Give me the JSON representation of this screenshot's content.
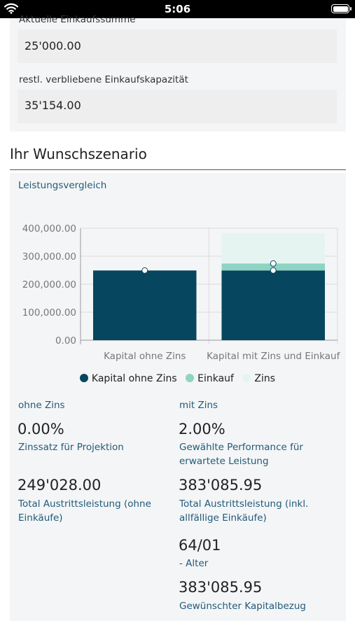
{
  "status": {
    "time": "5:06"
  },
  "fields": {
    "purchase_sum_label": "Aktuelle Einkaufssumme",
    "purchase_sum_value": "25'000.00",
    "remaining_label": "restl. verbliebene Einkaufskapazität",
    "remaining_value": "35'154.00"
  },
  "section": {
    "title": "Ihr Wunschszenario",
    "subtitle": "Leistungsvergleich"
  },
  "colors": {
    "kapital": "#07465f",
    "einkauf": "#8fd4c3",
    "zins": "#e6f4f1",
    "link": "#1f5a7a"
  },
  "chart_data": {
    "type": "bar",
    "categories": [
      "Kapital ohne Zins",
      "Kapital mit Zins und Einkauf"
    ],
    "y_ticks": [
      "400,000.00",
      "300,000.00",
      "200,000.00",
      "100,000.00",
      "0.00"
    ],
    "ylim": [
      0,
      400000
    ],
    "series": [
      {
        "name": "Kapital ohne Zins",
        "values": [
          249028,
          249028
        ]
      },
      {
        "name": "Einkauf",
        "values": [
          0,
          25000
        ]
      },
      {
        "name": "Zins",
        "values": [
          0,
          109057.95
        ]
      }
    ],
    "markers": [
      249028,
      249028,
      274028
    ],
    "legend_position": "bottom"
  },
  "results": {
    "left": {
      "head": "ohne Zins",
      "rate_value": "0.00%",
      "rate_label": "Zinssatz für Projektion",
      "total_value": "249'028.00",
      "total_label_1": "Total Austrittsleistung (ohne",
      "total_label_2": "Einkäufe)"
    },
    "right": {
      "head": "mit Zins",
      "rate_value": "2.00%",
      "rate_label_1": "Gewählte Performance für",
      "rate_label_2": "erwartete Leistung",
      "total_value": "383'085.95",
      "total_label_1": "Total Austrittsleistung (inkl.",
      "total_label_2": "allfällige Einkäufe)",
      "age_value": "64/01",
      "age_label": "- Alter",
      "capital_value": "383'085.95",
      "capital_label": "Gewünschter Kapitalbezug"
    }
  }
}
